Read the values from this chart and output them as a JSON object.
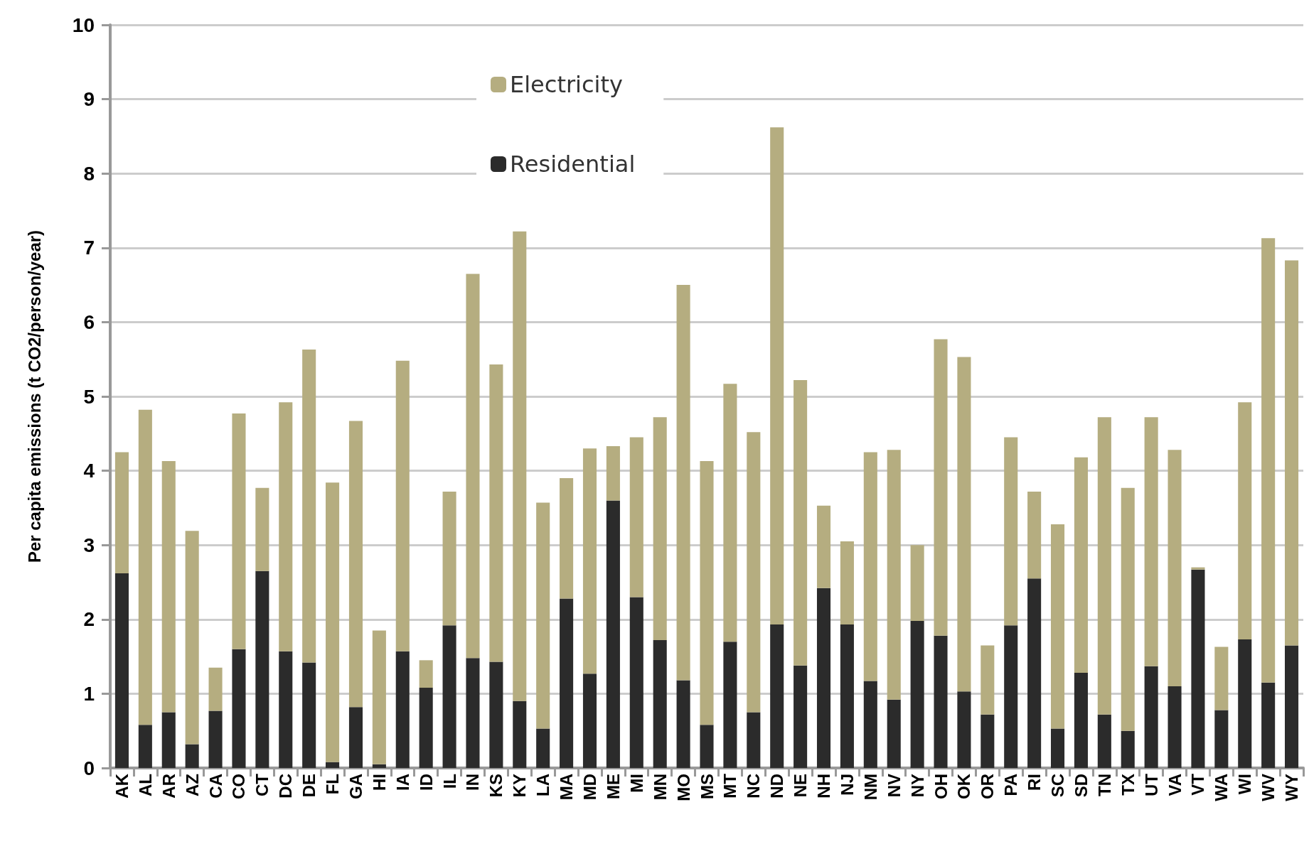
{
  "chart_data": {
    "type": "bar",
    "stacked": true,
    "ylabel": "Per capita emissions (t CO2/person/year)",
    "categories": [
      "AK",
      "AL",
      "AR",
      "AZ",
      "CA",
      "CO",
      "CT",
      "DC",
      "DE",
      "FL",
      "GA",
      "HI",
      "IA",
      "ID",
      "IL",
      "IN",
      "KS",
      "KY",
      "LA",
      "MA",
      "MD",
      "ME",
      "MI",
      "MN",
      "MO",
      "MS",
      "MT",
      "NC",
      "ND",
      "NE",
      "NH",
      "NJ",
      "NM",
      "NV",
      "NY",
      "OH",
      "OK",
      "OR",
      "PA",
      "RI",
      "SC",
      "SD",
      "TN",
      "TX",
      "UT",
      "VA",
      "VT",
      "WA",
      "WI",
      "WV",
      "WY"
    ],
    "series": [
      {
        "name": "Residential",
        "color": "#2b2b2b",
        "values": [
          2.62,
          0.58,
          0.75,
          0.32,
          0.77,
          1.6,
          2.65,
          1.57,
          1.42,
          0.08,
          0.82,
          0.05,
          1.57,
          1.08,
          1.92,
          1.48,
          1.43,
          0.9,
          0.53,
          2.28,
          1.27,
          3.6,
          2.3,
          1.72,
          1.18,
          0.58,
          1.7,
          0.75,
          1.93,
          1.38,
          2.42,
          1.93,
          1.17,
          0.92,
          1.98,
          1.78,
          1.03,
          0.72,
          1.92,
          2.55,
          0.53,
          1.28,
          0.72,
          0.5,
          1.37,
          1.1,
          2.67,
          0.78,
          1.73,
          1.15,
          1.65
        ]
      },
      {
        "name": "Electricity",
        "color": "#b5ad80",
        "values": [
          1.63,
          4.24,
          3.38,
          2.87,
          0.58,
          3.17,
          1.12,
          3.35,
          4.21,
          3.76,
          3.85,
          1.8,
          3.91,
          0.37,
          1.8,
          5.17,
          4.0,
          6.32,
          3.04,
          1.62,
          3.03,
          0.73,
          2.15,
          3.0,
          5.32,
          3.55,
          3.47,
          3.77,
          6.69,
          3.84,
          1.11,
          1.12,
          3.08,
          3.36,
          1.02,
          3.99,
          4.5,
          0.93,
          2.53,
          1.17,
          2.75,
          2.9,
          4.0,
          3.27,
          3.35,
          3.18,
          0.03,
          0.85,
          3.19,
          5.98,
          5.18
        ]
      }
    ],
    "ylim": [
      0,
      10
    ],
    "yticks": [
      0,
      1,
      2,
      3,
      4,
      5,
      6,
      7,
      8,
      9,
      10
    ],
    "grid": true,
    "legend": "top"
  }
}
